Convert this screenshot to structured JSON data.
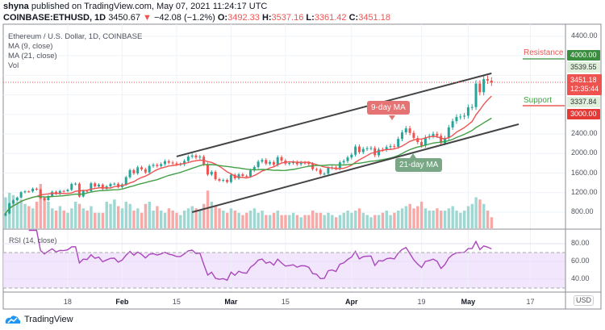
{
  "header": {
    "publisher": "shyna",
    "published_text": "published on TradingView.com, May 07, 2021 11:24:17 UTC",
    "symbol": "COINBASE:ETHUSD, 1D",
    "last": "3450.67",
    "change": "−42.08 (−1.2%)",
    "open_label": "O:",
    "open": "3492.33",
    "high_label": "H:",
    "high": "3537.16",
    "low_label": "L:",
    "low": "3361.42",
    "close_label": "C:",
    "close": "3451.18"
  },
  "legend": {
    "title": "Ethereum / U.S. Dollar, 1D, COINBASE",
    "ma9": "MA (9, close)",
    "ma21": "MA (21, close)",
    "vol": "Vol",
    "rsi": "RSI (14, close)"
  },
  "annotations": {
    "resistance": "Resistance",
    "support": "Support",
    "ma9_box": "9-day MA",
    "ma21_box": "21-day MA"
  },
  "price_tags": {
    "currency": "USD",
    "resistance": "4000.00",
    "high": "3539.55",
    "last": "3451.18",
    "countdown": "12:35:44",
    "low": "3337.84",
    "support": "3000.00"
  },
  "brand": "TradingView",
  "colors": {
    "up": "#26a69a",
    "down": "#ef5350",
    "ma9": "#ef5350",
    "ma21": "#43a047",
    "rsi": "#ab47bc",
    "resistance_tag": "#388e3c",
    "support_tag": "#e53935"
  },
  "chart_data": {
    "type": "candlestick",
    "price_axis": {
      "ticks": [
        "4400.00",
        "2400.00",
        "2000.00",
        "1600.00",
        "1200.00",
        "800.00"
      ],
      "tick_values": [
        4400,
        2400,
        2000,
        1600,
        1200,
        800
      ],
      "range": [
        500,
        4600
      ]
    },
    "time_axis": {
      "ticks": [
        "18",
        "Feb",
        "15",
        "Mar",
        "15",
        "Apr",
        "19",
        "May",
        "17"
      ],
      "tick_dates": [
        "2021-01-18",
        "2021-02-01",
        "2021-02-15",
        "2021-03-01",
        "2021-03-15",
        "2021-04-01",
        "2021-04-19",
        "2021-05-01",
        "2021-05-17"
      ]
    },
    "rsi_axis": {
      "ticks": [
        "80.00",
        "60.00",
        "40.00"
      ],
      "tick_values": [
        80,
        60,
        40
      ],
      "band": [
        30,
        70
      ]
    },
    "date_range": [
      "2021-01-02",
      "2021-05-07"
    ],
    "closes": [
      775,
      979,
      1042,
      1100,
      1208,
      1225,
      1224,
      1281,
      1262,
      1088,
      1048,
      1130,
      1218,
      1171,
      1233,
      1230,
      1257,
      1377,
      1383,
      1121,
      1236,
      1230,
      1391,
      1325,
      1364,
      1276,
      1329,
      1377,
      1382,
      1314,
      1369,
      1515,
      1660,
      1594,
      1719,
      1677,
      1614,
      1746,
      1768,
      1744,
      1783,
      1843,
      1814,
      1800,
      1780,
      1781,
      1848,
      1937,
      1960,
      1919,
      1935,
      1781,
      1570,
      1626,
      1475,
      1446,
      1459,
      1417,
      1565,
      1492,
      1575,
      1541,
      1533,
      1655,
      1723,
      1834,
      1868,
      1793,
      1826,
      1769,
      1924,
      1855,
      1794,
      1807,
      1823,
      1782,
      1812,
      1810,
      1787,
      1680,
      1669,
      1583,
      1587,
      1702,
      1716,
      1691,
      1819,
      1846,
      1919,
      1977,
      2143,
      2028,
      2093,
      2107,
      2112,
      1964,
      2081,
      2075,
      2133,
      2151,
      2138,
      2299,
      2432,
      2514,
      2422,
      2316,
      2235,
      2161,
      2330,
      2357,
      2403,
      2363,
      2214,
      2316,
      2534,
      2662,
      2747,
      2756,
      2773,
      2945,
      2950,
      3431,
      3253,
      3522,
      3492,
      3451
    ],
    "first_open": 730,
    "volume_relative": [
      70,
      80,
      75,
      60,
      65,
      55,
      50,
      45,
      60,
      100,
      70,
      60,
      45,
      40,
      50,
      40,
      35,
      45,
      60,
      55,
      45,
      40,
      50,
      35,
      35,
      35,
      60,
      55,
      65,
      50,
      45,
      60,
      55,
      40,
      45,
      35,
      55,
      60,
      40,
      50,
      40,
      35,
      45,
      40,
      35,
      30,
      40,
      45,
      50,
      45,
      40,
      55,
      85,
      60,
      50,
      45,
      40,
      35,
      45,
      40,
      35,
      30,
      35,
      40,
      45,
      35,
      40,
      30,
      30,
      35,
      40,
      30,
      30,
      30,
      35,
      30,
      25,
      30,
      30,
      40,
      35,
      35,
      30,
      35,
      30,
      25,
      30,
      35,
      40,
      35,
      40,
      45,
      35,
      30,
      25,
      30,
      30,
      35,
      40,
      30,
      35,
      40,
      45,
      50,
      55,
      45,
      50,
      60,
      45,
      40,
      40,
      45,
      40,
      40,
      45,
      50,
      40,
      35,
      40,
      50,
      55,
      70,
      65,
      55,
      40,
      25
    ],
    "series": [
      {
        "name": "MA (9, close)"
      },
      {
        "name": "MA (21, close)"
      },
      {
        "name": "RSI (14, close)"
      }
    ],
    "trendlines": [
      {
        "from": [
          "2021-02-15",
          1940
        ],
        "to": [
          "2021-05-07",
          3640
        ]
      },
      {
        "from": [
          "2021-02-19",
          800
        ],
        "to": [
          "2021-05-14",
          2600
        ]
      }
    ]
  }
}
